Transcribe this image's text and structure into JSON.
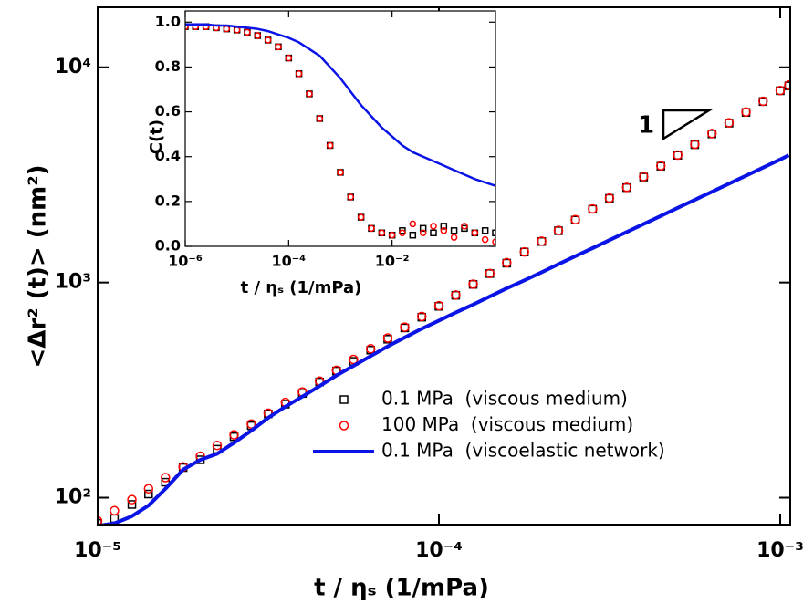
{
  "chart_data": [
    {
      "type": "scatter",
      "log_x": true,
      "log_y": true,
      "xlabel": "t / ηₛ (1/mPa)",
      "ylabel": "<Δr² (t)> (nm²)",
      "annotation": "1",
      "xlim": [
        1e-05,
        0.00107
      ],
      "ylim": [
        75,
        19000
      ],
      "xticks": [
        {
          "value": 1e-05,
          "label": "10⁻⁵"
        },
        {
          "value": 0.0001,
          "label": "10⁻⁴"
        },
        {
          "value": 0.001,
          "label": "10⁻³"
        }
      ],
      "yticks": [
        {
          "value": 100,
          "label": "10²"
        },
        {
          "value": 1000,
          "label": "10³"
        },
        {
          "value": 10000,
          "label": "10⁴"
        }
      ],
      "legend": "lower right",
      "x": [
        1e-05,
        1.12e-05,
        1.26e-05,
        1.41e-05,
        1.58e-05,
        1.78e-05,
        2e-05,
        2.24e-05,
        2.51e-05,
        2.82e-05,
        3.16e-05,
        3.55e-05,
        3.98e-05,
        4.47e-05,
        5.01e-05,
        5.62e-05,
        6.31e-05,
        7.08e-05,
        7.94e-05,
        8.91e-05,
        0.0001,
        0.000112,
        0.000126,
        0.000141,
        0.000158,
        0.000178,
        0.0002,
        0.000224,
        0.000251,
        0.000282,
        0.000316,
        0.000355,
        0.000398,
        0.000447,
        0.000501,
        0.000562,
        0.000631,
        0.000708,
        0.000794,
        0.000891,
        0.001,
        0.00106
      ],
      "series": [
        {
          "name": "0.1 MPa  (viscous medium)",
          "color": "#000000",
          "mode": "markers",
          "marker": "square",
          "values": [
            76,
            80,
            93,
            104,
            118,
            138,
            150,
            168,
            192,
            216,
            245,
            272,
            305,
            345,
            388,
            430,
            485,
            545,
            615,
            690,
            775,
            872,
            980,
            1100,
            1230,
            1385,
            1550,
            1740,
            1950,
            2190,
            2460,
            2760,
            3090,
            3470,
            3900,
            4370,
            4900,
            5500,
            6170,
            6930,
            7780,
            8200
          ]
        },
        {
          "name": "100 MPa  (viscous medium)",
          "color": "#ff0000",
          "mode": "markers",
          "marker": "circle",
          "values": [
            78,
            87,
            98,
            110,
            124,
            139,
            156,
            175,
            196,
            220,
            247,
            277,
            310,
            348,
            391,
            439,
            492,
            552,
            620,
            695,
            780,
            875,
            982,
            1102,
            1236,
            1387,
            1556,
            1746,
            1959,
            2198,
            2466,
            2767,
            3105,
            3484,
            3909,
            4386,
            4921,
            5522,
            6195,
            6951,
            7800,
            8270
          ]
        },
        {
          "name": "0.1 MPa  (viscoelastic network)",
          "color": "#0a14e6",
          "mode": "line",
          "values": [
            74,
            76,
            82,
            92,
            110,
            135,
            150,
            160,
            180,
            205,
            235,
            265,
            295,
            330,
            370,
            410,
            455,
            505,
            555,
            610,
            665,
            725,
            790,
            861,
            939,
            1023,
            1115,
            1216,
            1325,
            1444,
            1574,
            1716,
            1870,
            2039,
            2222,
            2422,
            2640,
            2878,
            3137,
            3419,
            3727,
            3900
          ]
        }
      ]
    },
    {
      "type": "scatter",
      "log_x": true,
      "log_y": false,
      "xlabel": "t / ηₛ (1/mPa)",
      "ylabel": "C(t)",
      "xlim": [
        1e-06,
        1
      ],
      "ylim": [
        0,
        1.05
      ],
      "xticks": [
        {
          "value": 1e-06,
          "label": "10⁻⁶"
        },
        {
          "value": 0.0001,
          "label": "10⁻⁴"
        },
        {
          "value": 0.01,
          "label": "10⁻²"
        }
      ],
      "yticks": [
        {
          "value": 0,
          "label": "0.0"
        },
        0.2,
        0.4,
        0.6,
        0.8,
        {
          "value": 1,
          "label": "1.0"
        }
      ],
      "x": [
        1e-06,
        1.58e-06,
        2.51e-06,
        3.98e-06,
        6.31e-06,
        1e-05,
        1.58e-05,
        2.51e-05,
        3.98e-05,
        6.31e-05,
        0.0001,
        0.000158,
        0.000251,
        0.000398,
        0.000631,
        0.001,
        0.00158,
        0.00251,
        0.00398,
        0.00631,
        0.01,
        0.0158,
        0.0251,
        0.0398,
        0.0631,
        0.1,
        0.158,
        0.251,
        0.398,
        0.631,
        1
      ],
      "series": [
        {
          "color": "#000000",
          "mode": "markers",
          "marker": "square",
          "values": [
            0.98,
            0.98,
            0.98,
            0.975,
            0.97,
            0.965,
            0.955,
            0.94,
            0.92,
            0.89,
            0.84,
            0.77,
            0.68,
            0.57,
            0.45,
            0.33,
            0.22,
            0.13,
            0.08,
            0.06,
            0.05,
            0.07,
            0.05,
            0.08,
            0.06,
            0.09,
            0.07,
            0.08,
            0.06,
            0.07,
            0.06
          ]
        },
        {
          "color": "#ff0000",
          "mode": "markers",
          "marker": "circle",
          "values": [
            0.98,
            0.98,
            0.98,
            0.975,
            0.97,
            0.965,
            0.955,
            0.94,
            0.92,
            0.89,
            0.84,
            0.77,
            0.68,
            0.57,
            0.45,
            0.33,
            0.22,
            0.13,
            0.08,
            0.06,
            0.05,
            0.06,
            0.1,
            0.06,
            0.09,
            0.07,
            0.04,
            0.09,
            0.06,
            0.03,
            0.02
          ]
        },
        {
          "color": "#0a14e6",
          "mode": "line",
          "values": [
            0.99,
            0.99,
            0.99,
            0.985,
            0.985,
            0.98,
            0.975,
            0.97,
            0.96,
            0.945,
            0.93,
            0.91,
            0.88,
            0.85,
            0.8,
            0.75,
            0.69,
            0.63,
            0.58,
            0.53,
            0.49,
            0.45,
            0.42,
            0.4,
            0.38,
            0.36,
            0.34,
            0.32,
            0.3,
            0.285,
            0.27
          ]
        }
      ]
    }
  ]
}
